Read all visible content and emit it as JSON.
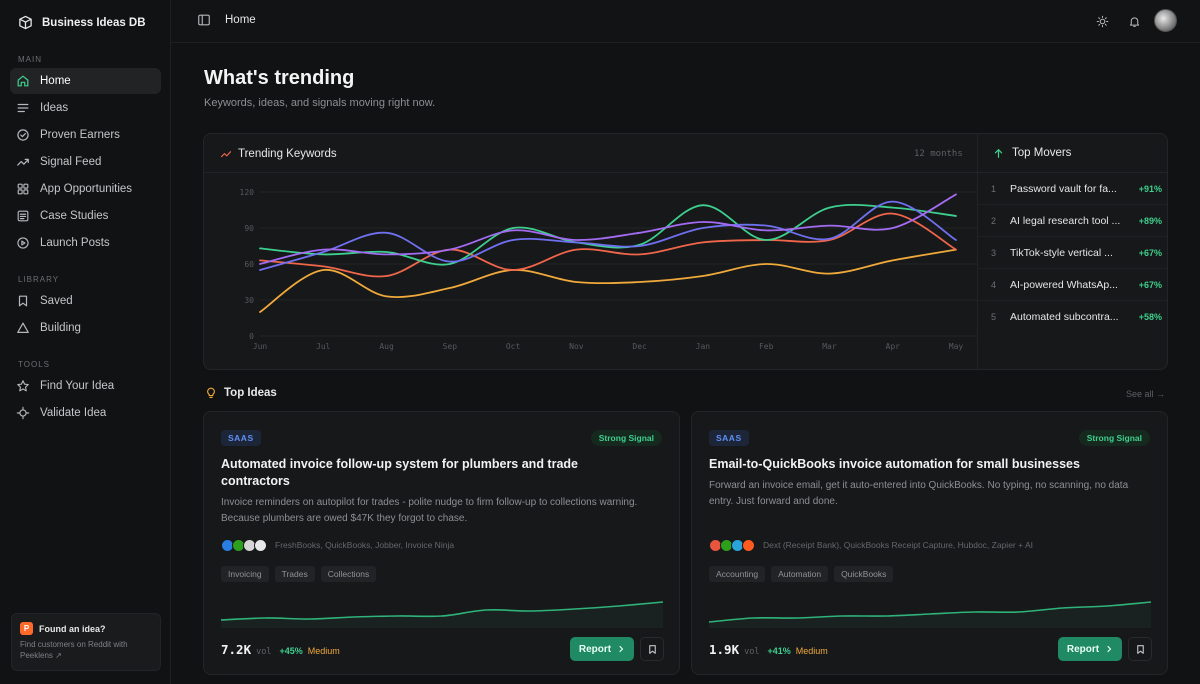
{
  "app": {
    "name": "Business Ideas DB"
  },
  "sidebar": {
    "sections": [
      {
        "label": "MAIN",
        "items": [
          {
            "label": "Home",
            "icon": "home-icon",
            "active": true
          },
          {
            "label": "Ideas",
            "icon": "list-icon"
          },
          {
            "label": "Proven Earners",
            "icon": "check-circle-icon"
          },
          {
            "label": "Signal Feed",
            "icon": "trending-up-icon"
          },
          {
            "label": "App Opportunities",
            "icon": "grid-icon"
          },
          {
            "label": "Case Studies",
            "icon": "document-icon"
          },
          {
            "label": "Launch Posts",
            "icon": "play-circle-icon"
          }
        ]
      },
      {
        "label": "LIBRARY",
        "items": [
          {
            "label": "Saved",
            "icon": "bookmark-icon"
          },
          {
            "label": "Building",
            "icon": "triangle-icon"
          }
        ]
      },
      {
        "label": "TOOLS",
        "items": [
          {
            "label": "Find Your Idea",
            "icon": "star-icon"
          },
          {
            "label": "Validate Idea",
            "icon": "crosshair-icon"
          }
        ]
      }
    ],
    "promo": {
      "badge": "P",
      "title": "Found an idea?",
      "line1": "Find customers on Reddit with",
      "line2": "Peeklens ↗"
    }
  },
  "topbar": {
    "breadcrumb": "Home"
  },
  "page": {
    "title": "What's trending",
    "subtitle": "Keywords, ideas, and signals moving right now."
  },
  "trending": {
    "title": "Trending Keywords",
    "range": "12 months"
  },
  "chart_data": {
    "type": "line",
    "x": [
      "Jun",
      "Jul",
      "Aug",
      "Sep",
      "Oct",
      "Nov",
      "Dec",
      "Jan",
      "Feb",
      "Mar",
      "Apr",
      "May"
    ],
    "ylim": [
      0,
      120
    ],
    "yticks": [
      0,
      30,
      60,
      90,
      120
    ],
    "grid": true,
    "series": [
      {
        "color": "#f0a93b",
        "values": [
          20,
          55,
          33,
          40,
          55,
          45,
          45,
          50,
          60,
          52,
          63,
          72
        ]
      },
      {
        "color": "#f0664a",
        "values": [
          63,
          58,
          50,
          72,
          55,
          72,
          68,
          78,
          80,
          80,
          102,
          72
        ]
      },
      {
        "color": "#3ecf8e",
        "values": [
          73,
          68,
          70,
          60,
          90,
          78,
          76,
          109,
          80,
          107,
          107,
          100
        ]
      },
      {
        "color": "#6f70f0",
        "values": [
          55,
          70,
          86,
          62,
          80,
          78,
          75,
          90,
          92,
          81,
          112,
          80
        ]
      },
      {
        "color": "#a36bf2",
        "values": [
          60,
          72,
          68,
          72,
          88,
          80,
          86,
          95,
          88,
          92,
          90,
          118
        ]
      }
    ]
  },
  "movers": {
    "title": "Top Movers",
    "items": [
      {
        "rank": "1",
        "name": "Password vault for fa...",
        "delta": "+91%"
      },
      {
        "rank": "2",
        "name": "AI legal research tool ...",
        "delta": "+89%"
      },
      {
        "rank": "3",
        "name": "TikTok-style vertical ...",
        "delta": "+67%"
      },
      {
        "rank": "4",
        "name": "AI-powered WhatsAp...",
        "delta": "+67%"
      },
      {
        "rank": "5",
        "name": "Automated subcontra...",
        "delta": "+58%"
      }
    ]
  },
  "top_ideas": {
    "title": "Top Ideas",
    "see_all": "See all →",
    "cards": [
      {
        "tag": "SAAS",
        "signal": "Strong Signal",
        "title": "Automated invoice follow-up system for plumbers and trade contractors",
        "description": "Invoice reminders on autopilot for trades - polite nudge to firm follow-up to collections warning. Because plumbers are owed $47K they forgot to chase.",
        "tools": "FreshBooks, QuickBooks, Jobber, Invoice Ninja",
        "logo_colors": [
          "#2a7de1",
          "#2ca01c",
          "#d6d6d6",
          "#e8e8e8"
        ],
        "chips": [
          "Invoicing",
          "Trades",
          "Collections"
        ],
        "volume": "7.2K",
        "volume_label": "vol",
        "growth": "+45%",
        "competition": "Medium",
        "report": "Report",
        "spark": [
          14,
          15,
          14.5,
          15.5,
          16,
          16,
          19,
          18.5,
          19.5,
          21,
          23
        ]
      },
      {
        "tag": "SAAS",
        "signal": "Strong Signal",
        "title": "Email-to-QuickBooks invoice automation for small businesses",
        "description": "Forward an invoice email, get it auto-entered into QuickBooks. No typing, no scanning, no data entry. Just forward and done.",
        "tools": "Dext (Receipt Bank), QuickBooks Receipt Capture, Hubdoc, Zapier + AI",
        "logo_colors": [
          "#e8553f",
          "#2ca01c",
          "#2aa4d8",
          "#ff5a1f"
        ],
        "chips": [
          "Accounting",
          "Automation",
          "QuickBooks"
        ],
        "volume": "1.9K",
        "volume_label": "vol",
        "growth": "+41%",
        "competition": "Medium",
        "report": "Report",
        "spark": [
          13,
          15,
          15,
          16,
          16,
          17,
          18,
          18,
          20,
          21,
          23
        ]
      }
    ]
  }
}
